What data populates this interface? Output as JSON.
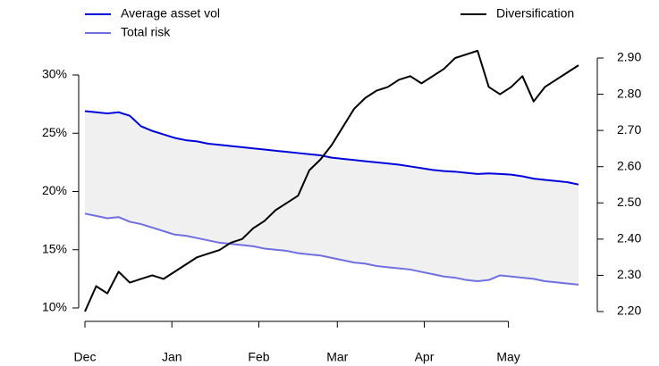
{
  "chart_data": {
    "type": "line",
    "x": [
      0,
      4,
      8,
      12,
      16,
      20,
      24,
      28,
      32,
      36,
      40,
      44,
      48,
      52,
      56,
      60,
      64,
      68,
      72,
      76,
      80,
      84,
      88,
      92,
      96,
      100,
      104,
      108,
      112,
      116,
      120,
      124,
      128,
      132,
      136,
      140,
      144,
      148,
      152,
      156,
      160,
      164,
      168,
      172,
      176
    ],
    "xlim": [
      0,
      176
    ],
    "xticks": [
      {
        "value": 0,
        "label": "Dec"
      },
      {
        "value": 31,
        "label": "Jan"
      },
      {
        "value": 62,
        "label": "Feb"
      },
      {
        "value": 90,
        "label": "Mar"
      },
      {
        "value": 121,
        "label": "Apr"
      },
      {
        "value": 151,
        "label": "May"
      }
    ],
    "ylim": [
      10,
      30
    ],
    "yticks": [
      {
        "value": 10,
        "label": "10%"
      },
      {
        "value": 15,
        "label": "15%"
      },
      {
        "value": 20,
        "label": "20%"
      },
      {
        "value": 25,
        "label": "25%"
      },
      {
        "value": 30,
        "label": "30%"
      }
    ],
    "y2lim": [
      2.2,
      2.9
    ],
    "y2ticks": [
      {
        "value": 2.2,
        "label": "2.20"
      },
      {
        "value": 2.3,
        "label": "2.30"
      },
      {
        "value": 2.4,
        "label": "2.40"
      },
      {
        "value": 2.5,
        "label": "2.50"
      },
      {
        "value": 2.6,
        "label": "2.60"
      },
      {
        "value": 2.7,
        "label": "2.70"
      },
      {
        "value": 2.8,
        "label": "2.80"
      },
      {
        "value": 2.9,
        "label": "2.90"
      }
    ],
    "fill_between": "#f0f0f0",
    "series": [
      {
        "name": "Average asset vol",
        "color": "#0000dd",
        "values": [
          26.9,
          26.8,
          26.7,
          26.8,
          26.5,
          25.6,
          25.2,
          24.9,
          24.6,
          24.4,
          24.3,
          24.1,
          24.0,
          23.9,
          23.8,
          23.7,
          23.6,
          23.5,
          23.4,
          23.3,
          23.2,
          23.1,
          22.9,
          22.8,
          22.7,
          22.6,
          22.5,
          22.4,
          22.3,
          22.15,
          22.0,
          21.85,
          21.75,
          21.7,
          21.6,
          21.5,
          21.55,
          21.5,
          21.45,
          21.3,
          21.1,
          21.0,
          20.9,
          20.8,
          20.6
        ]
      },
      {
        "name": "Total risk",
        "color": "#7070e0",
        "values": [
          18.1,
          17.9,
          17.7,
          17.8,
          17.4,
          17.2,
          16.9,
          16.6,
          16.3,
          16.2,
          16.0,
          15.8,
          15.6,
          15.5,
          15.4,
          15.3,
          15.1,
          15.0,
          14.9,
          14.7,
          14.6,
          14.5,
          14.3,
          14.1,
          13.9,
          13.8,
          13.6,
          13.5,
          13.4,
          13.3,
          13.1,
          12.9,
          12.7,
          12.6,
          12.4,
          12.3,
          12.4,
          12.8,
          12.7,
          12.6,
          12.5,
          12.3,
          12.2,
          12.1,
          12.0
        ]
      },
      {
        "name": "Diversification",
        "color": "#000000",
        "axis": "y2",
        "values": [
          2.2,
          2.27,
          2.25,
          2.31,
          2.28,
          2.29,
          2.3,
          2.29,
          2.31,
          2.33,
          2.35,
          2.36,
          2.37,
          2.39,
          2.4,
          2.43,
          2.45,
          2.48,
          2.5,
          2.52,
          2.59,
          2.62,
          2.66,
          2.71,
          2.76,
          2.79,
          2.81,
          2.82,
          2.84,
          2.85,
          2.83,
          2.85,
          2.87,
          2.9,
          2.91,
          2.92,
          2.82,
          2.8,
          2.82,
          2.85,
          2.78,
          2.82,
          2.84,
          2.86,
          2.88
        ]
      }
    ]
  }
}
